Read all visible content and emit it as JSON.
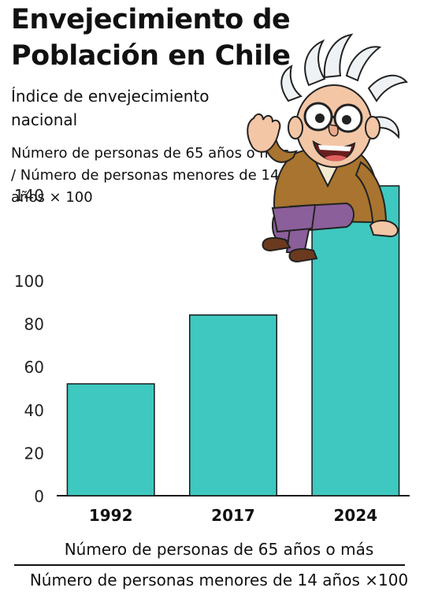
{
  "title": "Envejecimiento de Población en Chile",
  "subtitle": "Índice de envejecimiento nacional",
  "definition": "Número de personas de 65 años o más / Número de personas menores de 14 años × 100",
  "formula": {
    "numerator": "Número de personas de 65 años o más",
    "denominator": "Número de personas menores de 14 años ×100"
  },
  "illustration": {
    "icon": "cartoon-elderly-man-illustration"
  },
  "colors": {
    "bar": "#3ec8bf",
    "bar_stroke": "#1a1a1a",
    "axis": "#1a1a1a"
  },
  "chart_data": {
    "type": "bar",
    "categories": [
      "1992",
      "2017",
      "2024"
    ],
    "values": [
      52,
      84,
      144
    ],
    "yticks": [
      0,
      20,
      40,
      60,
      80,
      100,
      140
    ],
    "title": "Envejecimiento de Población en Chile",
    "xlabel": "",
    "ylabel": "",
    "grid": false
  }
}
